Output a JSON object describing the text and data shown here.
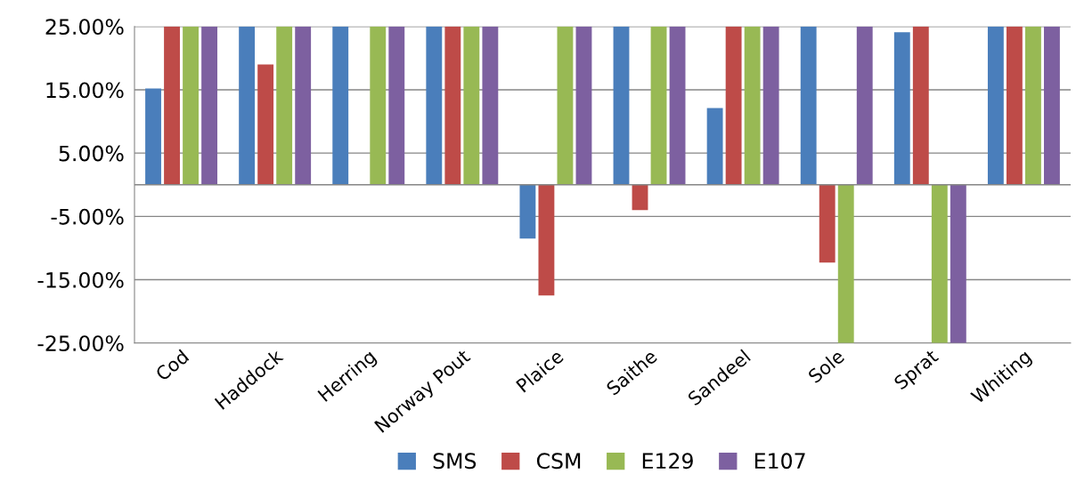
{
  "chart_data": {
    "type": "bar",
    "categories": [
      "Cod",
      "Haddock",
      "Herring",
      "Norway Pout",
      "Plaice",
      "Saithe",
      "Sandeel",
      "Sole",
      "Sprat",
      "Whiting"
    ],
    "series": [
      {
        "name": "SMS",
        "color": "#4a7ebb",
        "values": [
          15.2,
          25,
          25,
          25,
          -8.5,
          25,
          12.1,
          25,
          24.1,
          25
        ]
      },
      {
        "name": "CSM",
        "color": "#be4b48",
        "values": [
          25,
          19,
          null,
          25,
          -17.5,
          -4,
          25,
          -12.3,
          25,
          25
        ]
      },
      {
        "name": "E129",
        "color": "#98b954",
        "values": [
          25,
          25,
          25,
          25,
          25,
          25,
          25,
          -25,
          -25,
          25
        ]
      },
      {
        "name": "E107",
        "color": "#7d60a0",
        "values": [
          25,
          25,
          25,
          25,
          25,
          25,
          25,
          25,
          -25,
          25
        ]
      }
    ],
    "ylim": [
      -25,
      25
    ],
    "yticks": [
      {
        "value": -25,
        "label": "-25.00%"
      },
      {
        "value": -15,
        "label": "-15.00%"
      },
      {
        "value": -5,
        "label": "-5.00%"
      },
      {
        "value": 5,
        "label": "5.00%"
      },
      {
        "value": 15,
        "label": "15.00%"
      },
      {
        "value": 25,
        "label": "25.00%"
      }
    ],
    "grid": "y",
    "legend": "bottom"
  }
}
